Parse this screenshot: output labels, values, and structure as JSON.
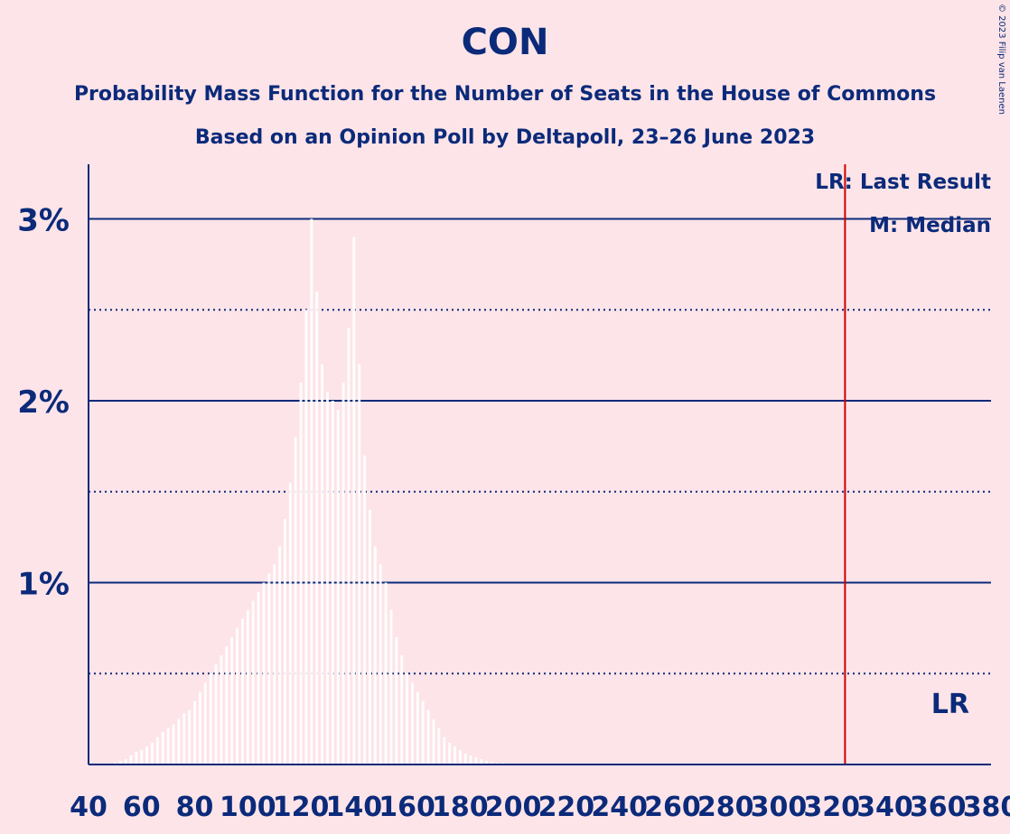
{
  "header": {
    "title": "CON",
    "subtitle_1": "Probability Mass Function for the Number of Seats in the House of Commons",
    "subtitle_2": "Based on an Opinion Poll by Deltapoll, 23–26 June 2023",
    "copyright": "© 2023 Filip van Laenen"
  },
  "legend": {
    "last_result": "LR: Last Result",
    "median": "M: Median"
  },
  "lr_marker_label": "LR",
  "colors": {
    "background": "#fde4e8",
    "text": "#0b2a7a",
    "grid": "#0b2a7a",
    "bars": "#ffffff",
    "last_result_line": "#cc0000"
  },
  "chart_data": {
    "type": "bar",
    "title": "CON",
    "xlabel": "",
    "ylabel": "",
    "xlim": [
      40,
      380
    ],
    "ylim": [
      0,
      3.3
    ],
    "x_ticks": [
      40,
      60,
      80,
      100,
      120,
      140,
      160,
      180,
      200,
      220,
      240,
      260,
      280,
      300,
      320,
      340,
      360,
      380
    ],
    "y_ticks": [
      {
        "value": 1,
        "label": "1%"
      },
      {
        "value": 2,
        "label": "2%"
      },
      {
        "value": 3,
        "label": "3%"
      }
    ],
    "y_minor_gridlines": [
      0.5,
      1.5,
      2.5
    ],
    "grid": true,
    "last_result_seats": 325,
    "median_seats": 125,
    "x": [
      50,
      52,
      54,
      56,
      58,
      60,
      62,
      64,
      66,
      68,
      70,
      72,
      74,
      76,
      78,
      80,
      82,
      84,
      86,
      88,
      90,
      92,
      94,
      96,
      98,
      100,
      102,
      104,
      106,
      108,
      110,
      112,
      114,
      116,
      118,
      120,
      122,
      124,
      126,
      128,
      130,
      132,
      134,
      136,
      138,
      140,
      142,
      144,
      146,
      148,
      150,
      152,
      154,
      156,
      158,
      160,
      162,
      164,
      166,
      168,
      170,
      172,
      174,
      176,
      178,
      180,
      182,
      184,
      186,
      188,
      190,
      192,
      194,
      196,
      198,
      200
    ],
    "values": [
      0.01,
      0.02,
      0.03,
      0.05,
      0.07,
      0.08,
      0.1,
      0.12,
      0.15,
      0.18,
      0.2,
      0.22,
      0.25,
      0.28,
      0.3,
      0.35,
      0.4,
      0.45,
      0.5,
      0.55,
      0.6,
      0.65,
      0.7,
      0.75,
      0.8,
      0.85,
      0.9,
      0.95,
      1.0,
      1.05,
      1.1,
      1.2,
      1.35,
      1.55,
      1.8,
      2.1,
      2.5,
      3.0,
      2.6,
      2.2,
      2.05,
      2.0,
      1.95,
      2.1,
      2.4,
      2.9,
      2.2,
      1.7,
      1.4,
      1.2,
      1.1,
      1.0,
      0.85,
      0.7,
      0.6,
      0.5,
      0.45,
      0.4,
      0.35,
      0.3,
      0.25,
      0.2,
      0.15,
      0.12,
      0.1,
      0.08,
      0.06,
      0.05,
      0.04,
      0.03,
      0.02,
      0.015,
      0.01,
      0.008,
      0.005,
      0.003
    ]
  }
}
